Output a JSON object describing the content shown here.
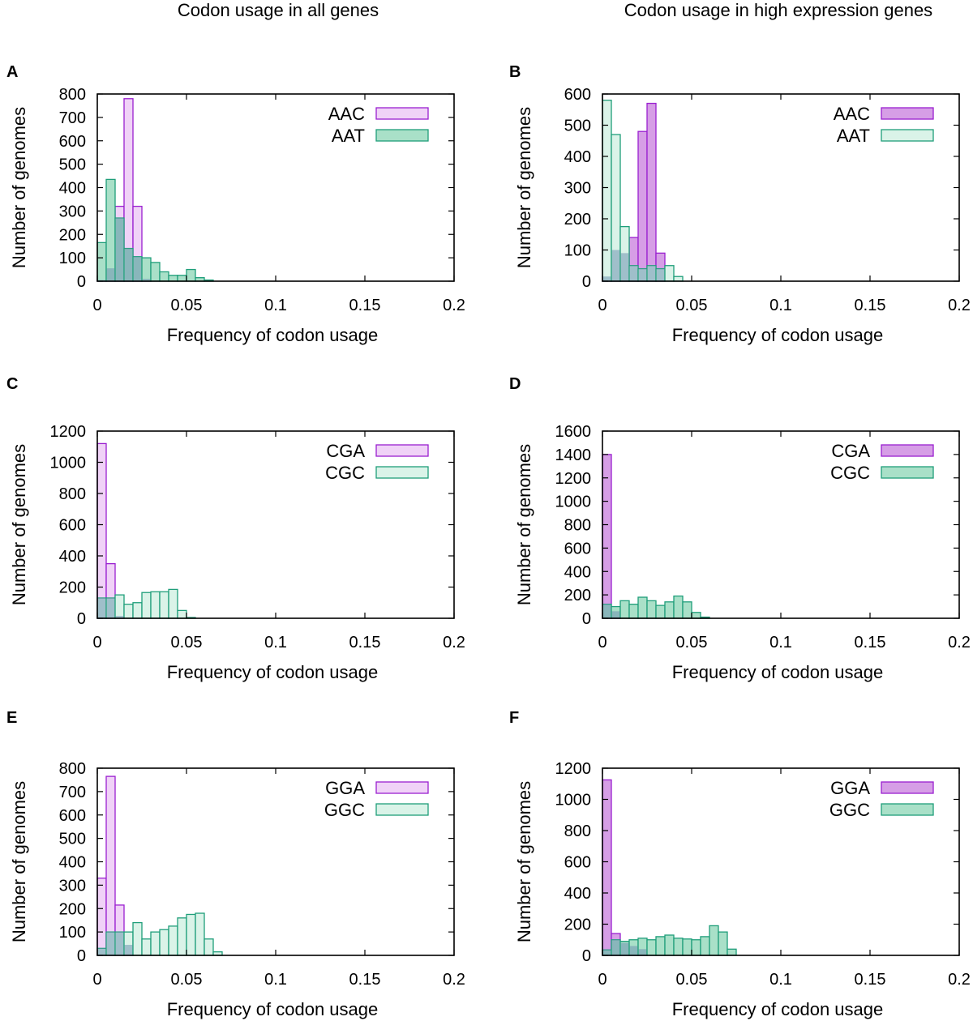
{
  "figure": {
    "column_titles": [
      "Codon usage in all genes",
      "Codon usage in high expression genes"
    ]
  },
  "colors": {
    "purple_edge": "#9a1fd0",
    "purple_fill_light": "#f0d2f7",
    "purple_fill_dark": "#d69ee6",
    "green_edge": "#1f9e7a",
    "green_fill_light": "#daf3e8",
    "green_fill_dark": "#a9e0c8",
    "overlap_fill": "#6f93b0"
  },
  "chart_data": [
    {
      "panel": "A",
      "type": "bar",
      "column": 0,
      "row": 0,
      "xlabel": "Frequency of codon usage",
      "ylabel": "Number of genomes",
      "xlim": [
        0,
        0.2
      ],
      "ylim": [
        0,
        800
      ],
      "xticks": [
        0,
        0.05,
        0.1,
        0.15,
        0.2
      ],
      "yticks": [
        0,
        100,
        200,
        300,
        400,
        500,
        600,
        700,
        800
      ],
      "bin_width": 0.005,
      "legend_position": "top-right",
      "series": [
        {
          "name": "AAC",
          "color": "purple",
          "shade": "light",
          "x": [
            0.0,
            0.005,
            0.01,
            0.015,
            0.02,
            0.025
          ],
          "values": [
            5,
            55,
            320,
            780,
            320,
            10
          ]
        },
        {
          "name": "AAT",
          "color": "green",
          "shade": "dark",
          "x": [
            0.0,
            0.005,
            0.01,
            0.015,
            0.02,
            0.025,
            0.03,
            0.035,
            0.04,
            0.045,
            0.05,
            0.055,
            0.06
          ],
          "values": [
            165,
            435,
            270,
            140,
            105,
            100,
            80,
            40,
            25,
            25,
            50,
            15,
            5
          ]
        }
      ]
    },
    {
      "panel": "B",
      "type": "bar",
      "column": 1,
      "row": 0,
      "xlabel": "Frequency of codon usage",
      "ylabel": "Number of genomes",
      "xlim": [
        0,
        0.2
      ],
      "ylim": [
        0,
        600
      ],
      "xticks": [
        0,
        0.05,
        0.1,
        0.15,
        0.2
      ],
      "yticks": [
        0,
        100,
        200,
        300,
        400,
        500,
        600
      ],
      "bin_width": 0.005,
      "legend_position": "top-right",
      "series": [
        {
          "name": "AAC",
          "color": "purple",
          "shade": "dark",
          "x": [
            0.0,
            0.005,
            0.01,
            0.015,
            0.02,
            0.025,
            0.03
          ],
          "values": [
            15,
            100,
            90,
            140,
            480,
            570,
            90
          ]
        },
        {
          "name": "AAT",
          "color": "green",
          "shade": "light",
          "x": [
            0.0,
            0.005,
            0.01,
            0.015,
            0.02,
            0.025,
            0.03,
            0.035,
            0.04
          ],
          "values": [
            580,
            470,
            175,
            50,
            40,
            50,
            40,
            50,
            15
          ]
        }
      ]
    },
    {
      "panel": "C",
      "type": "bar",
      "column": 0,
      "row": 1,
      "xlabel": "Frequency of codon usage",
      "ylabel": "Number of genomes",
      "xlim": [
        0,
        0.2
      ],
      "ylim": [
        0,
        1200
      ],
      "xticks": [
        0,
        0.05,
        0.1,
        0.15,
        0.2
      ],
      "yticks": [
        0,
        200,
        400,
        600,
        800,
        1000,
        1200
      ],
      "bin_width": 0.005,
      "legend_position": "top-right",
      "series": [
        {
          "name": "CGA",
          "color": "purple",
          "shade": "light",
          "x": [
            0.0,
            0.005,
            0.01
          ],
          "values": [
            1120,
            350,
            15
          ]
        },
        {
          "name": "CGC",
          "color": "green",
          "shade": "light",
          "x": [
            0.0,
            0.005,
            0.01,
            0.015,
            0.02,
            0.025,
            0.03,
            0.035,
            0.04,
            0.045,
            0.05
          ],
          "values": [
            130,
            130,
            150,
            90,
            100,
            165,
            170,
            170,
            185,
            50,
            5
          ]
        }
      ]
    },
    {
      "panel": "D",
      "type": "bar",
      "column": 1,
      "row": 1,
      "xlabel": "Frequency of codon usage",
      "ylabel": "Number of genomes",
      "xlim": [
        0,
        0.2
      ],
      "ylim": [
        0,
        1600
      ],
      "xticks": [
        0,
        0.05,
        0.1,
        0.15,
        0.2
      ],
      "yticks": [
        0,
        200,
        400,
        600,
        800,
        1000,
        1200,
        1400,
        1600
      ],
      "bin_width": 0.005,
      "legend_position": "top-right",
      "series": [
        {
          "name": "CGA",
          "color": "purple",
          "shade": "dark",
          "x": [
            0.0,
            0.005
          ],
          "values": [
            1400,
            60
          ]
        },
        {
          "name": "CGC",
          "color": "green",
          "shade": "dark",
          "x": [
            0.0,
            0.005,
            0.01,
            0.015,
            0.02,
            0.025,
            0.03,
            0.035,
            0.04,
            0.045,
            0.05,
            0.055
          ],
          "values": [
            120,
            100,
            150,
            120,
            180,
            150,
            110,
            140,
            190,
            140,
            50,
            10
          ]
        }
      ]
    },
    {
      "panel": "E",
      "type": "bar",
      "column": 0,
      "row": 2,
      "xlabel": "Frequency of codon usage",
      "ylabel": "Number of genomes",
      "xlim": [
        0,
        0.2
      ],
      "ylim": [
        0,
        800
      ],
      "xticks": [
        0,
        0.05,
        0.1,
        0.15,
        0.2
      ],
      "yticks": [
        0,
        100,
        200,
        300,
        400,
        500,
        600,
        700,
        800
      ],
      "bin_width": 0.005,
      "legend_position": "top-right",
      "series": [
        {
          "name": "GGA",
          "color": "purple",
          "shade": "light",
          "x": [
            0.0,
            0.005,
            0.01,
            0.015
          ],
          "values": [
            330,
            765,
            215,
            45
          ]
        },
        {
          "name": "GGC",
          "color": "green",
          "shade": "light",
          "x": [
            0.0,
            0.005,
            0.01,
            0.015,
            0.02,
            0.025,
            0.03,
            0.035,
            0.04,
            0.045,
            0.05,
            0.055,
            0.06,
            0.065
          ],
          "values": [
            30,
            100,
            100,
            100,
            140,
            70,
            100,
            110,
            125,
            160,
            175,
            180,
            70,
            15
          ]
        }
      ]
    },
    {
      "panel": "F",
      "type": "bar",
      "column": 1,
      "row": 2,
      "xlabel": "Frequency of codon usage",
      "ylabel": "Number of genomes",
      "xlim": [
        0,
        0.2
      ],
      "ylim": [
        0,
        1200
      ],
      "xticks": [
        0,
        0.05,
        0.1,
        0.15,
        0.2
      ],
      "yticks": [
        0,
        200,
        400,
        600,
        800,
        1000,
        1200
      ],
      "bin_width": 0.005,
      "legend_position": "top-right",
      "series": [
        {
          "name": "GGA",
          "color": "purple",
          "shade": "dark",
          "x": [
            0.0,
            0.005,
            0.01,
            0.015,
            0.02
          ],
          "values": [
            1125,
            140,
            80,
            60,
            40
          ]
        },
        {
          "name": "GGC",
          "color": "green",
          "shade": "dark",
          "x": [
            0.0,
            0.005,
            0.01,
            0.015,
            0.02,
            0.025,
            0.03,
            0.035,
            0.04,
            0.045,
            0.05,
            0.055,
            0.06,
            0.065,
            0.07
          ],
          "values": [
            35,
            100,
            90,
            100,
            110,
            100,
            120,
            130,
            110,
            105,
            100,
            120,
            190,
            150,
            40
          ]
        }
      ]
    }
  ]
}
